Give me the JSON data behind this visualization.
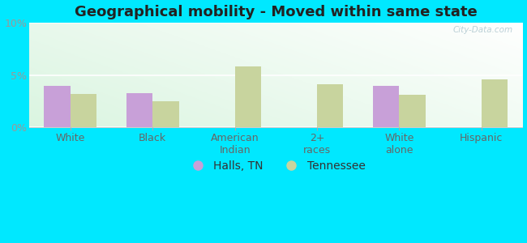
{
  "title": "Geographical mobility - Moved within same state",
  "categories": [
    "White",
    "Black",
    "American\nIndian",
    "2+\nraces",
    "White\nalone",
    "Hispanic"
  ],
  "halls_tn": [
    4.0,
    3.3,
    0.0,
    0.0,
    4.0,
    0.0
  ],
  "tennessee": [
    3.2,
    2.5,
    5.8,
    4.1,
    3.1,
    4.6
  ],
  "halls_color": "#c8a0d8",
  "tennessee_color": "#c8d49e",
  "ylim": [
    0,
    10
  ],
  "yticks": [
    0,
    5,
    10
  ],
  "ytick_labels": [
    "0%",
    "5%",
    "10%"
  ],
  "legend_labels": [
    "Halls, TN",
    "Tennessee"
  ],
  "background_color": "#00e8ff",
  "watermark": "City-Data.com",
  "bar_width": 0.32,
  "title_fontsize": 13,
  "tick_fontsize": 9,
  "legend_fontsize": 10
}
